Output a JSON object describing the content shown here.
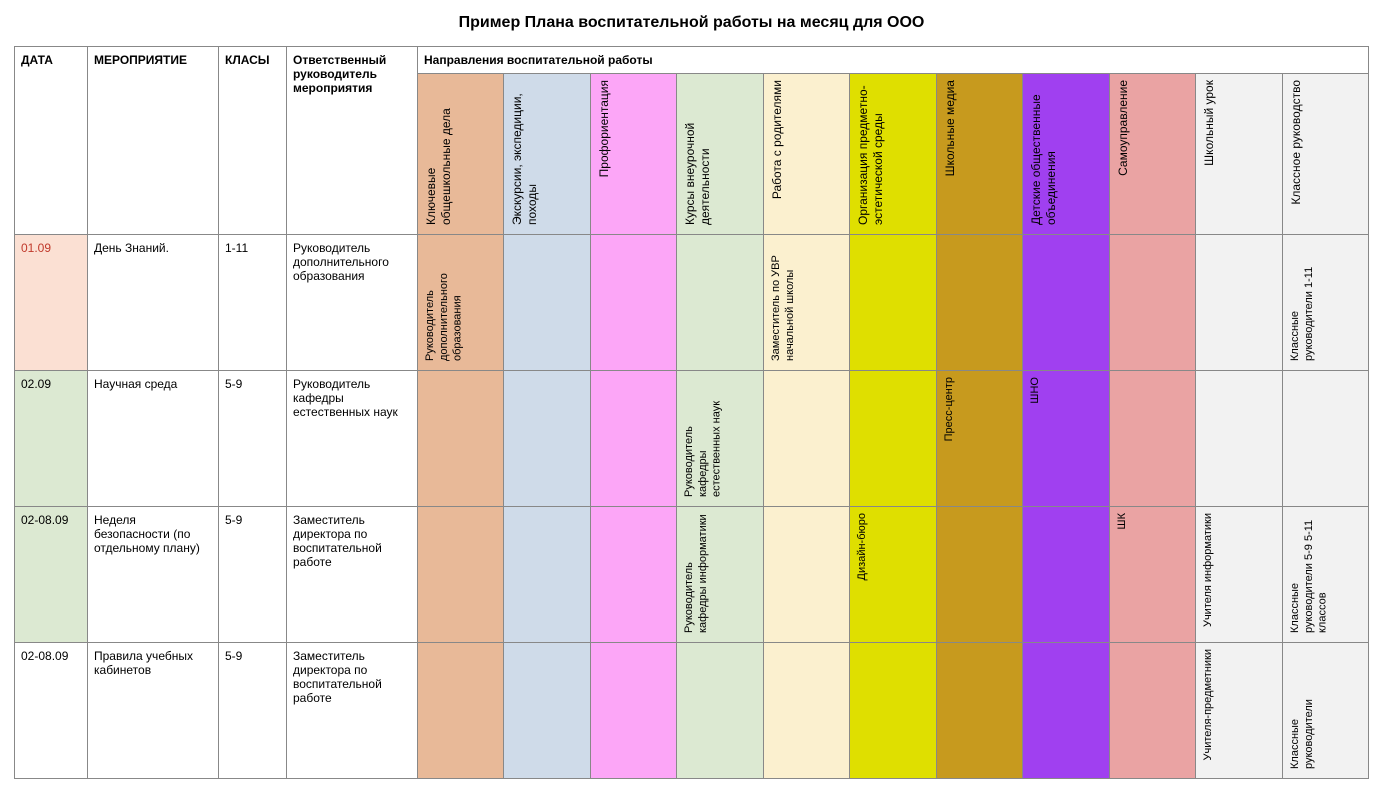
{
  "title": "Пример Плана воспитательной работы на месяц для ООО",
  "head": {
    "date": "ДАТА",
    "event": "МЕРОПРИЯТИЕ",
    "classes": "КЛАСЫ",
    "responsible": "Ответственный руководитель мероприятия",
    "directions_title": "Направления воспитательной работы"
  },
  "directions": [
    {
      "label": "Ключевые общешкольные дела",
      "bg": "#e8b998"
    },
    {
      "label": "Экскурсии, экспедиции, походы",
      "bg": "#cfdbe9"
    },
    {
      "label": "Профориентация",
      "bg": "#fca6f7"
    },
    {
      "label": "Курсы внеурочной деятельности",
      "bg": "#dce9d2"
    },
    {
      "label": "Работа с родителями",
      "bg": "#fbf0cf"
    },
    {
      "label": "Организация предметно-эстетической среды",
      "bg": "#dfdf00"
    },
    {
      "label": "Школьные медиа",
      "bg": "#c79a1e"
    },
    {
      "label": "Детские общественные объединения",
      "bg": "#a040f0"
    },
    {
      "label": "Самоуправление",
      "bg": "#eaa3a3"
    },
    {
      "label": "Школьный урок",
      "bg": "#f2f2f2"
    },
    {
      "label": "Классное руководство",
      "bg": "#f2f2f2"
    }
  ],
  "rows": [
    {
      "date": "01.09",
      "date_bg": "#fbe0d3",
      "date_color": "#c0392b",
      "event": "День Знаний.",
      "classes": "1-11",
      "responsible": "Руководитель дополнительного образования",
      "cells": [
        "Руководитель дополнительного образования",
        "",
        "",
        "",
        "Заместитель по УВР начальной школы",
        "",
        "",
        "",
        "",
        "",
        "Классные руководители 1-11"
      ]
    },
    {
      "date": "02.09",
      "date_bg": "#dce9d2",
      "date_color": "#000000",
      "event": "Научная среда",
      "classes": "5-9",
      "responsible": "Руководитель кафедры естественных наук",
      "cells": [
        "",
        "",
        "",
        "Руководитель кафедры естественных наук",
        "",
        "",
        "Пресс-центр",
        "ШНО",
        "",
        "",
        ""
      ]
    },
    {
      "date": "02-08.09",
      "date_bg": "#dce9d2",
      "date_color": "#000000",
      "event": "Неделя безопасности (по отдельному плану)",
      "classes": "5-9",
      "responsible": "Заместитель директора по воспитательной работе",
      "cells": [
        "",
        "",
        "",
        "Руководитель кафедры информатики",
        "",
        "Дизайн-бюро",
        "",
        "",
        "ШК",
        "Учителя информатики",
        "Классные руководители 5-9 5-11 классов"
      ]
    },
    {
      "date": "02-08.09",
      "date_bg": "#ffffff",
      "date_color": "#000000",
      "event": "Правила учебных кабинетов",
      "classes": "5-9",
      "responsible": "Заместитель директора по воспитательной работе",
      "cells": [
        "",
        "",
        "",
        "",
        "",
        "",
        "",
        "",
        "",
        "Учителя-предметники",
        "Классные руководители"
      ]
    }
  ]
}
